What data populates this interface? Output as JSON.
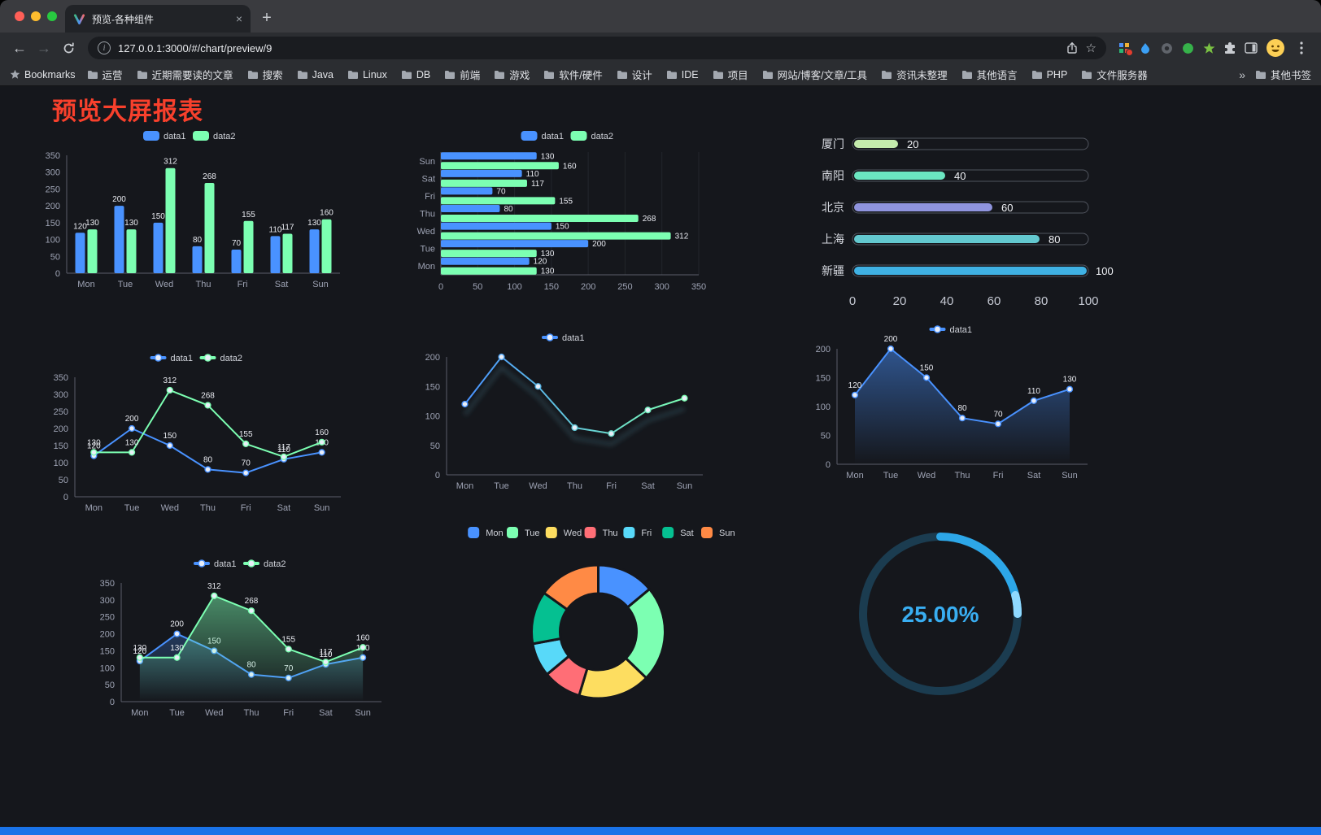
{
  "browser": {
    "tab_title": "预览-各种组件",
    "new_tab": "+",
    "url": "127.0.0.1:3000/#/chart/preview/9",
    "bookmarks_label": "Bookmarks",
    "bookmarks": [
      "运营",
      "近期需要读的文章",
      "搜索",
      "Java",
      "Linux",
      "DB",
      "前端",
      "游戏",
      "软件/硬件",
      "设计",
      "IDE",
      "项目",
      "网站/博客/文章/工具",
      "资讯未整理",
      "其他语言",
      "PHP",
      "文件服务器"
    ],
    "overflow_chevron": "»",
    "other_bookmarks": "其他书签",
    "toolbar_icons": [
      "back-icon",
      "forward-icon",
      "reload-icon",
      "site-info-icon",
      "share-icon",
      "bookmark-star-icon",
      "extension-grid-icon",
      "water-drop-icon",
      "dark-circle-icon",
      "green-circle-icon",
      "green-star-icon",
      "puzzle-icon",
      "sidebar-icon",
      "profile-avatar",
      "menu-kebab-icon"
    ]
  },
  "page": {
    "title": "预览大屏报表",
    "title_color": "#f8402c",
    "background": "#15171c",
    "footer_bar_color": "#1a73e8"
  },
  "chart_data": [
    {
      "id": "bar-basic",
      "type": "bar",
      "categories": [
        "Mon",
        "Tue",
        "Wed",
        "Thu",
        "Fri",
        "Sat",
        "Sun"
      ],
      "series": [
        {
          "name": "data1",
          "color": "#4992ff",
          "values": [
            120,
            200,
            150,
            80,
            70,
            110,
            130
          ]
        },
        {
          "name": "data2",
          "color": "#7cffb2",
          "values": [
            130,
            130,
            312,
            268,
            155,
            117,
            160
          ]
        }
      ],
      "ylim": [
        0,
        350
      ],
      "ytick": 50,
      "legend_position": "top"
    },
    {
      "id": "bar-horizontal",
      "type": "hbar",
      "categories": [
        "Mon",
        "Tue",
        "Wed",
        "Thu",
        "Fri",
        "Sat",
        "Sun"
      ],
      "series": [
        {
          "name": "data1",
          "color": "#4992ff",
          "values": [
            120,
            200,
            150,
            80,
            70,
            110,
            130
          ]
        },
        {
          "name": "data2",
          "color": "#7cffb2",
          "values": [
            130,
            130,
            312,
            268,
            155,
            117,
            160
          ]
        }
      ],
      "xlim": [
        0,
        350
      ],
      "xtick": 50,
      "legend_position": "top"
    },
    {
      "id": "bar-capsule",
      "type": "capsule",
      "xlim": [
        0,
        100
      ],
      "xticks": [
        0,
        20,
        40,
        60,
        80,
        100
      ],
      "rows": [
        {
          "label": "厦门",
          "value": 20,
          "color": "#c4ebad"
        },
        {
          "label": "南阳",
          "value": 40,
          "color": "#6be6c1"
        },
        {
          "label": "北京",
          "value": 60,
          "color": "#8f94de"
        },
        {
          "label": "上海",
          "value": 80,
          "color": "#63c8cf"
        },
        {
          "label": "新疆",
          "value": 100,
          "color": "#3fb1e3"
        }
      ]
    },
    {
      "id": "line-double",
      "type": "line",
      "labels": true,
      "categories": [
        "Mon",
        "Tue",
        "Wed",
        "Thu",
        "Fri",
        "Sat",
        "Sun"
      ],
      "series": [
        {
          "name": "data1",
          "color": "#4992ff",
          "values": [
            120,
            200,
            150,
            80,
            70,
            110,
            130
          ]
        },
        {
          "name": "data2",
          "color": "#7cffb2",
          "values": [
            130,
            130,
            312,
            268,
            155,
            117,
            160
          ]
        }
      ],
      "ylim": [
        0,
        350
      ],
      "ytick": 50
    },
    {
      "id": "line-gradient",
      "type": "line",
      "labels": false,
      "categories": [
        "Mon",
        "Tue",
        "Wed",
        "Thu",
        "Fri",
        "Sat",
        "Sun"
      ],
      "series": [
        {
          "name": "data1",
          "color": "#4992ff",
          "gradient": [
            "#4992ff",
            "#7cffb2"
          ],
          "values": [
            120,
            200,
            150,
            80,
            70,
            110,
            130
          ]
        }
      ],
      "ylim": [
        0,
        200
      ],
      "ytick": 50
    },
    {
      "id": "line-area",
      "type": "line",
      "labels": true,
      "categories": [
        "Mon",
        "Tue",
        "Wed",
        "Thu",
        "Fri",
        "Sat",
        "Sun"
      ],
      "series": [
        {
          "name": "data1",
          "color": "#4992ff",
          "area": 0.5,
          "values": [
            120,
            200,
            150,
            80,
            70,
            110,
            130
          ]
        }
      ],
      "ylim": [
        0,
        200
      ],
      "ytick": 50
    },
    {
      "id": "line-area-double",
      "type": "line",
      "labels": true,
      "categories": [
        "Mon",
        "Tue",
        "Wed",
        "Thu",
        "Fri",
        "Sat",
        "Sun"
      ],
      "series": [
        {
          "name": "data1",
          "color": "#4992ff",
          "area": 0.28,
          "values": [
            120,
            200,
            150,
            80,
            70,
            110,
            130
          ]
        },
        {
          "name": "data2",
          "color": "#7cffb2",
          "area": 0.5,
          "values": [
            130,
            130,
            312,
            268,
            155,
            117,
            160
          ]
        }
      ],
      "ylim": [
        0,
        350
      ],
      "ytick": 50
    },
    {
      "id": "pie-week",
      "type": "pie",
      "categories": [
        "Mon",
        "Tue",
        "Wed",
        "Thu",
        "Fri",
        "Sat",
        "Sun"
      ],
      "values": [
        120,
        200,
        150,
        80,
        70,
        110,
        130
      ],
      "colors": [
        "#4992ff",
        "#7cffb2",
        "#fddd60",
        "#ff6e76",
        "#58d9f9",
        "#05c091",
        "#ff8a45"
      ]
    },
    {
      "id": "progress-ring",
      "type": "ring",
      "value_text": "25.00%",
      "percent": 25,
      "color": "#2da7e8",
      "tip_color": "#8fd9ff",
      "track_color": "#1b3c50"
    }
  ]
}
